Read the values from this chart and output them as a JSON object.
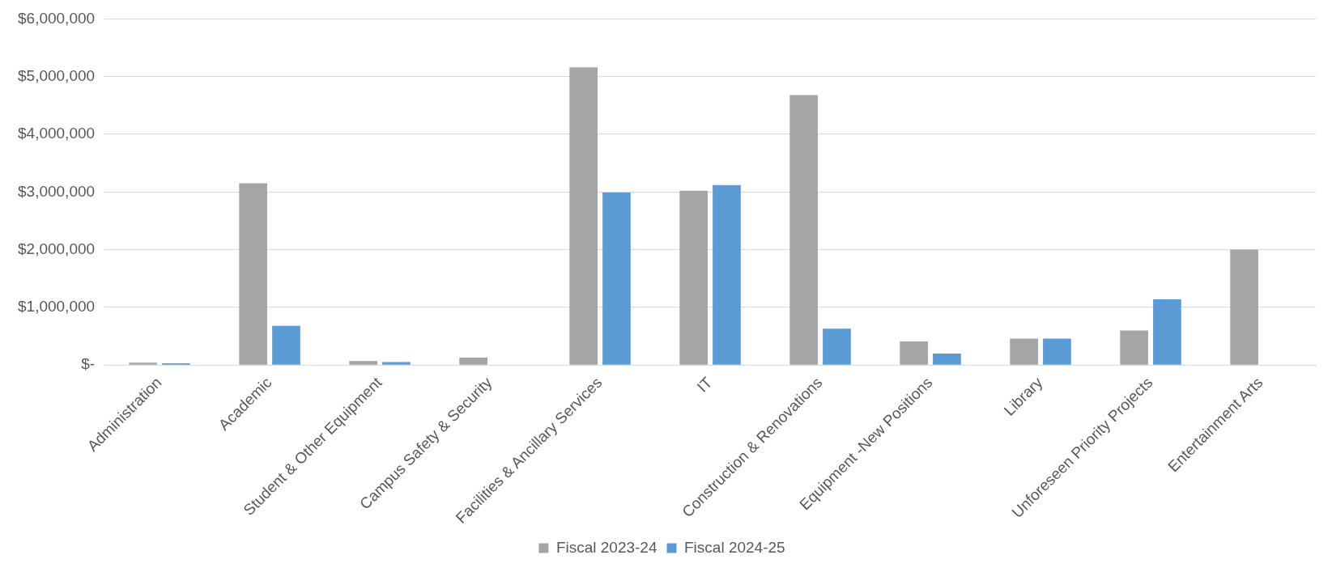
{
  "chart_data": {
    "type": "bar",
    "categories": [
      "Administration",
      "Academic",
      "Student & Other Equipment",
      "Campus Safety & Security",
      "Facilities & Ancillary Services",
      "IT",
      "Construction & Renovations",
      "Equipment -New Positions",
      "Library",
      "Unforeseen Priority Projects",
      "Entertainment Arts"
    ],
    "series": [
      {
        "name": "Fiscal 2023-24",
        "color": "#a5a5a5",
        "values": [
          40000,
          3150000,
          70000,
          130000,
          5160000,
          3020000,
          4680000,
          410000,
          460000,
          600000,
          2000000
        ]
      },
      {
        "name": "Fiscal 2024-25",
        "color": "#5b9bd5",
        "values": [
          30000,
          680000,
          50000,
          0,
          2990000,
          3120000,
          630000,
          200000,
          460000,
          1140000,
          0
        ]
      }
    ],
    "ylim": [
      0,
      6000000
    ],
    "yticks": [
      {
        "value": 0,
        "label": "$-"
      },
      {
        "value": 1000000,
        "label": "$1,000,000"
      },
      {
        "value": 2000000,
        "label": "$2,000,000"
      },
      {
        "value": 3000000,
        "label": "$3,000,000"
      },
      {
        "value": 4000000,
        "label": "$4,000,000"
      },
      {
        "value": 5000000,
        "label": "$5,000,000"
      },
      {
        "value": 6000000,
        "label": "$6,000,000"
      }
    ],
    "grid": "y",
    "legend": "bottom"
  }
}
